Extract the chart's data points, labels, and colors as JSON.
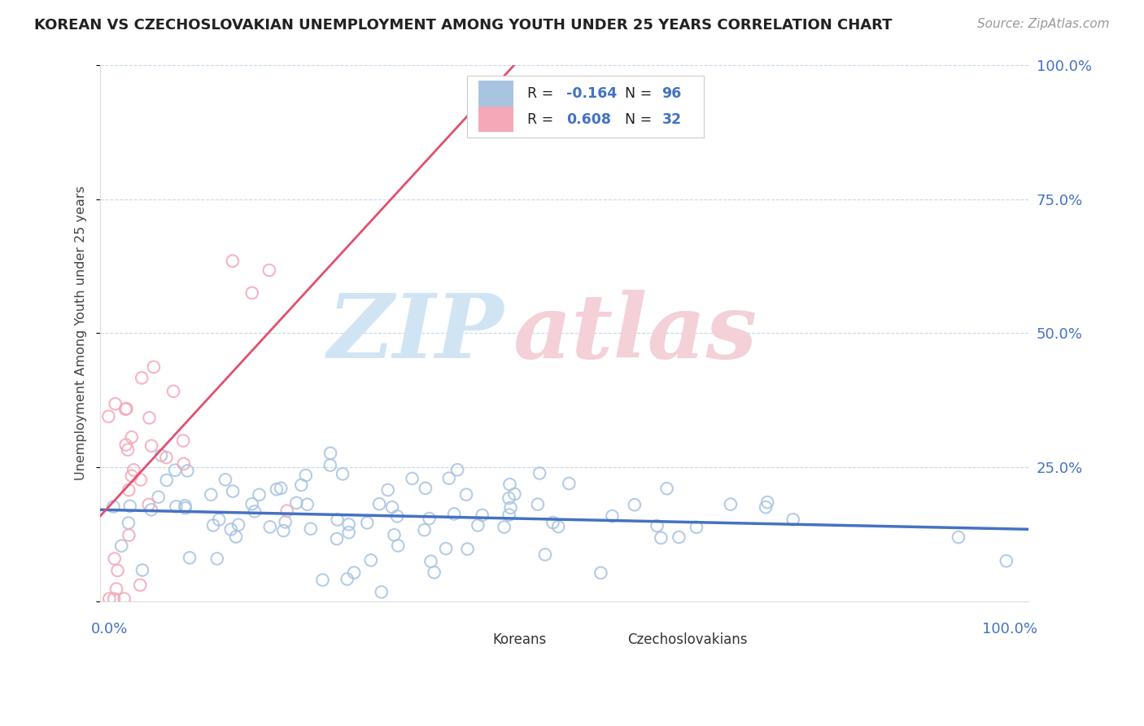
{
  "title": "KOREAN VS CZECHOSLOVAKIAN UNEMPLOYMENT AMONG YOUTH UNDER 25 YEARS CORRELATION CHART",
  "source": "Source: ZipAtlas.com",
  "ylabel": "Unemployment Among Youth under 25 years",
  "korean_R": -0.164,
  "korean_N": 96,
  "czech_R": 0.608,
  "czech_N": 32,
  "korean_color": "#a8c4e0",
  "czech_color": "#f4a8b8",
  "korean_line_color": "#4472c4",
  "czech_line_color": "#e05070",
  "background_color": "#ffffff",
  "grid_color": "#c8d8e8",
  "watermark_zip_color": "#d0e4f4",
  "watermark_atlas_color": "#f4d0d8",
  "tick_label_color": "#4472c4",
  "legend_border_color": "#cccccc",
  "text_color": "#444444"
}
